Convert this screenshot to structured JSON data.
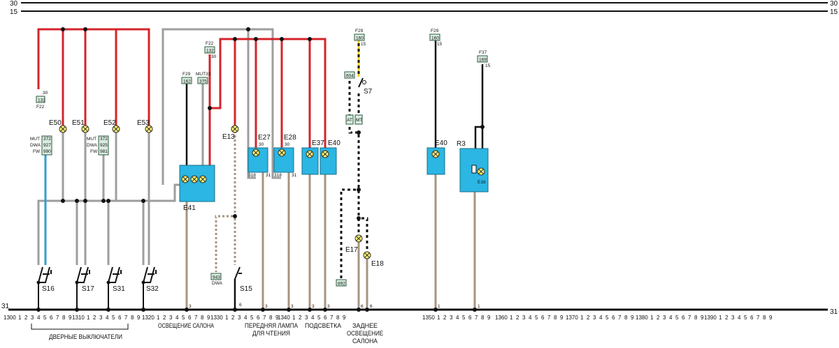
{
  "rails": {
    "r30": "30",
    "r15": "15",
    "r31": "31"
  },
  "fuses": {
    "f22a": {
      "fuse": "F22",
      "num": "132",
      "pin": "30"
    },
    "f22b": {
      "fuse": "F22",
      "num": "132",
      "pin": "30"
    },
    "f29a": {
      "fuse": "F29",
      "num": "162"
    },
    "mut33": {
      "fuse": "MUT33",
      "num": "375"
    },
    "f29b": {
      "fuse": "F29",
      "num": "160",
      "pin": "15"
    },
    "f29c": {
      "fuse": "F29",
      "num": "160",
      "pin": "15"
    },
    "f37": {
      "fuse": "F37",
      "num": "169",
      "pin": "15"
    }
  },
  "codes_left": {
    "rows": [
      {
        "k": "MUT",
        "v": "372"
      },
      {
        "k": "DWA",
        "v": "927"
      },
      {
        "k": "FW",
        "v": "990"
      }
    ]
  },
  "codes_mid": {
    "rows": [
      {
        "k": "MUT",
        "v": "372"
      },
      {
        "k": "DWA",
        "v": "925"
      },
      {
        "k": "FW",
        "v": "981"
      }
    ]
  },
  "connectors": {
    "c604": "604",
    "cAT": "AT",
    "cMT": "MT",
    "c943": "943",
    "c943sub": "DWA",
    "c892": "892",
    "c318a": "318",
    "c318b": "318",
    "p31a": "31",
    "p31b": "31",
    "p30a": "30",
    "p30b": "30"
  },
  "components": {
    "E50": "E50",
    "E51": "E51",
    "E52": "E52",
    "E53": "E53",
    "E41": "E41",
    "E13": "E13",
    "E27": "E27",
    "E28": "E28",
    "E37": "E37",
    "E40a": "E40",
    "E40b": "E40",
    "R3": "R3",
    "E16": "E16",
    "E17": "E17",
    "E18": "E18",
    "S16": "S16",
    "S17": "S17",
    "S31": "S31",
    "S32": "S32",
    "S15": "S15",
    "S7": "S7"
  },
  "pins": {
    "p3a": "3",
    "p3b": "3",
    "p3c": "3",
    "p3d": "3",
    "p3e": "3",
    "p6a": "6",
    "p6b": "6",
    "p6c": "6",
    "p1a": "1",
    "p1b": "1"
  },
  "ruler": {
    "decades": [
      "1300",
      "1310",
      "1320",
      "1330",
      "1340",
      "1350",
      "1360",
      "1370",
      "1380",
      "1390"
    ],
    "digits": [
      "1",
      "2",
      "3",
      "4",
      "5",
      "6",
      "7",
      "8",
      "9"
    ]
  },
  "sections": {
    "door": "ДВЕРНЫЕ ВЫКЛЮЧАТЕЛИ",
    "interior": "ОСВЕЩЕНИЕ САЛОНА",
    "reading": [
      "ПЕРЕДНЯЯ ЛАМПА",
      "ДЛЯ ЧТЕНИЯ"
    ],
    "backlight": "ПОДСВЕТКА",
    "rear": [
      "ЗАДНЕЕ",
      "ОСВЕЩЕНИЕ",
      "САЛОНА"
    ]
  },
  "colors": {
    "red": "#d4242b",
    "gray": "#9e9e9e",
    "black": "#111111",
    "tan": "#a89481",
    "blue": "#2f9fcf",
    "module": "#2bb6e3",
    "lamp": "#fbf36b"
  }
}
